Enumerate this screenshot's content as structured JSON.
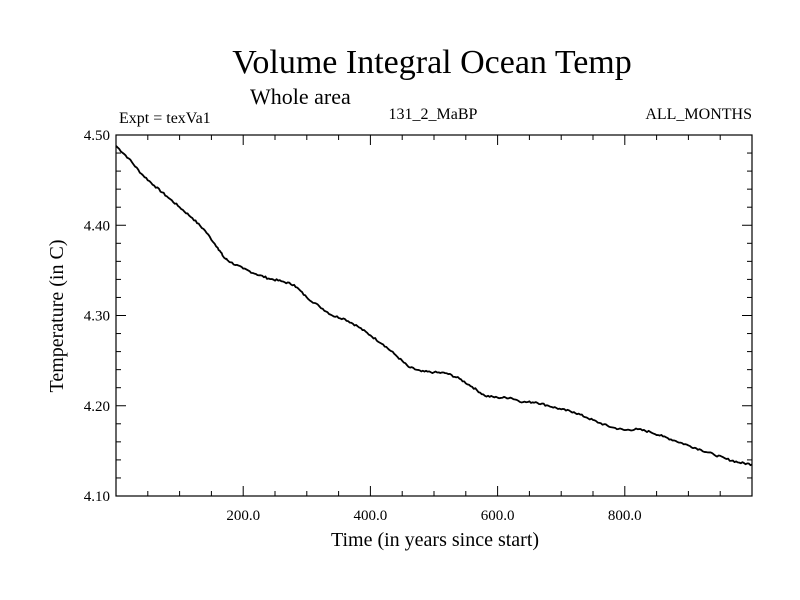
{
  "chart_data": {
    "type": "line",
    "title": "Volume Integral Ocean Temp",
    "subtitle": "Whole area",
    "annotations": {
      "left": "Expt = texVa1",
      "center": "131_2_MaBP",
      "right": "ALL_MONTHS"
    },
    "xlabel": "Time (in years since start)",
    "ylabel": "Temperature (in C)",
    "xlim": [
      0,
      1000
    ],
    "ylim": [
      4.1,
      4.5
    ],
    "x_ticks": [
      200,
      400,
      600,
      800
    ],
    "x_tick_labels": [
      "200.0",
      "400.0",
      "600.0",
      "800.0"
    ],
    "y_ticks": [
      4.1,
      4.2,
      4.3,
      4.4,
      4.5
    ],
    "y_tick_labels": [
      "4.10",
      "4.20",
      "4.30",
      "4.40",
      "4.50"
    ],
    "grid": false,
    "series": [
      {
        "name": "Volume integral ocean temperature",
        "color": "#000000",
        "x": [
          0,
          20,
          40,
          60,
          80,
          100,
          120,
          140,
          160,
          170,
          180,
          200,
          220,
          240,
          260,
          280,
          300,
          320,
          340,
          360,
          380,
          400,
          420,
          440,
          460,
          480,
          500,
          520,
          540,
          560,
          580,
          600,
          620,
          640,
          660,
          680,
          700,
          720,
          740,
          760,
          780,
          800,
          820,
          840,
          860,
          880,
          900,
          920,
          940,
          960,
          980,
          1000
        ],
        "y": [
          4.488,
          4.474,
          4.457,
          4.444,
          4.432,
          4.42,
          4.408,
          4.394,
          4.375,
          4.364,
          4.359,
          4.352,
          4.346,
          4.341,
          4.338,
          4.334,
          4.32,
          4.31,
          4.3,
          4.296,
          4.288,
          4.278,
          4.268,
          4.256,
          4.243,
          4.238,
          4.237,
          4.236,
          4.23,
          4.221,
          4.211,
          4.209,
          4.209,
          4.204,
          4.204,
          4.2,
          4.196,
          4.193,
          4.187,
          4.181,
          4.176,
          4.173,
          4.174,
          4.171,
          4.166,
          4.161,
          4.156,
          4.151,
          4.146,
          4.141,
          4.137,
          4.135
        ]
      }
    ]
  }
}
